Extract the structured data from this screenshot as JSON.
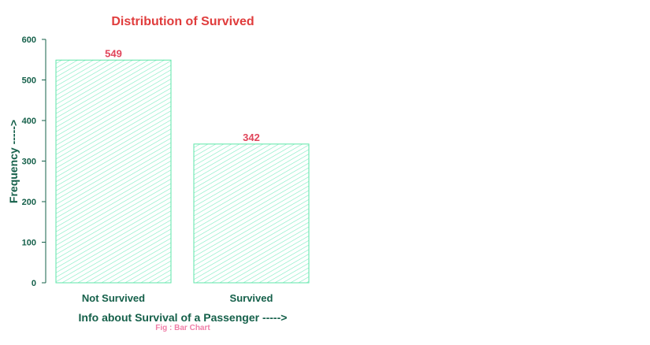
{
  "colors": {
    "title": "#e03c3c",
    "axis_text": "#15604a",
    "bar_stroke": "#5ee6a8",
    "bar_hatch": "#7debc0",
    "value_label": "#e0455a",
    "caption": "#f07fa8"
  },
  "caption": "Fig : Bar Chart",
  "chart_data": {
    "type": "bar",
    "title": "Distribution of Survived",
    "xlabel": "Info about Survival of a Passenger ----->",
    "ylabel": "Frequency ----->",
    "categories": [
      "Not Survived",
      "Survived"
    ],
    "values": [
      549,
      342
    ],
    "value_labels": [
      "549",
      "342"
    ],
    "ylim": [
      0,
      600
    ],
    "yticks": [
      0,
      100,
      200,
      300,
      400,
      500,
      600
    ],
    "bar_fill": "diagonal-hatch",
    "grid": false
  }
}
